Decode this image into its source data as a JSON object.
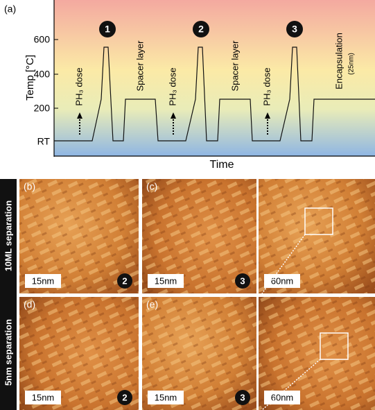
{
  "panel_a": {
    "label": "(a)",
    "y_axis_label": "Temp [°C]",
    "y_ticks": [
      "RT",
      "200",
      "400",
      "600"
    ],
    "x_axis_label": "Time",
    "steps": [
      "1",
      "2",
      "3"
    ],
    "doses": [
      "PH₃ dose",
      "PH₃ dose",
      "PH₃ dose"
    ],
    "spacers": [
      "Spacer layer",
      "Spacer layer"
    ],
    "encapsulation": "Encapsulation",
    "encapsulation_thickness": "(25nm)"
  },
  "rows": [
    {
      "label": "10ML separation",
      "images": [
        {
          "label": "(b)",
          "scale": "15nm",
          "step": "2"
        },
        {
          "label": "(c)",
          "scale": "15nm",
          "step": "3"
        },
        {
          "scale": "60nm"
        }
      ]
    },
    {
      "label": "5nm separation",
      "images": [
        {
          "label": "(d)",
          "scale": "15nm",
          "step": "2"
        },
        {
          "label": "(e)",
          "scale": "15nm",
          "step": "3"
        },
        {
          "scale": "60nm"
        }
      ]
    }
  ]
}
